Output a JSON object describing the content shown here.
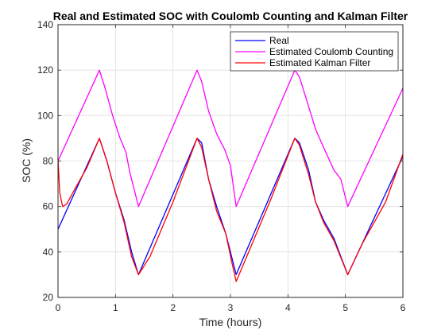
{
  "chart_data": {
    "type": "line",
    "title": "Real and Estimated SOC with Coulomb Counting and Kalman Filter",
    "xlabel": "Time (hours)",
    "ylabel": "SOC (%)",
    "xlim": [
      0,
      6
    ],
    "ylim": [
      20,
      140
    ],
    "xticks": [
      0,
      1,
      2,
      3,
      4,
      5,
      6
    ],
    "yticks": [
      20,
      40,
      60,
      80,
      100,
      120,
      140
    ],
    "grid": true,
    "legend_position": "top-right",
    "series": [
      {
        "name": "Real",
        "color": "#0000ff",
        "x": [
          0,
          0.72,
          0.85,
          1.0,
          1.15,
          1.28,
          1.4,
          2.42,
          2.5,
          2.62,
          2.76,
          2.92,
          3.1,
          4.12,
          4.2,
          4.36,
          4.48,
          4.62,
          4.8,
          5.04,
          6.0
        ],
        "y": [
          50,
          90,
          80,
          66,
          54,
          40,
          30,
          90,
          88,
          72,
          60,
          48,
          30,
          90,
          88,
          76,
          62,
          54,
          46,
          30,
          82
        ]
      },
      {
        "name": "Estimated Coulomb Counting",
        "color": "#ff00ff",
        "x": [
          0,
          0.72,
          0.82,
          0.95,
          1.08,
          1.18,
          1.25,
          1.4,
          2.42,
          2.5,
          2.62,
          2.76,
          2.9,
          3.0,
          3.1,
          4.12,
          4.2,
          4.36,
          4.48,
          4.62,
          4.8,
          4.92,
          5.04,
          6.0
        ],
        "y": [
          80,
          120,
          112,
          100,
          90,
          84,
          75,
          60,
          120,
          115,
          102,
          92,
          85,
          78,
          60,
          120,
          117,
          104,
          94,
          86,
          76,
          72,
          60,
          112
        ]
      },
      {
        "name": "Estimated Kalman Filter",
        "color": "#ff0000",
        "x": [
          0,
          0.03,
          0.08,
          0.15,
          0.3,
          0.5,
          0.72,
          0.85,
          1.0,
          1.15,
          1.28,
          1.4,
          1.6,
          2.0,
          2.42,
          2.5,
          2.62,
          2.76,
          2.92,
          3.02,
          3.1,
          3.3,
          3.7,
          4.12,
          4.2,
          4.36,
          4.48,
          4.62,
          4.8,
          5.04,
          5.3,
          5.7,
          6.0
        ],
        "y": [
          81,
          66,
          60,
          61,
          68,
          77,
          90,
          80,
          66,
          53,
          38,
          30,
          38,
          62,
          90,
          86,
          72,
          58,
          48,
          36,
          27,
          39,
          63,
          90,
          87,
          74,
          62,
          53,
          45,
          30,
          44,
          62,
          83
        ]
      }
    ]
  }
}
